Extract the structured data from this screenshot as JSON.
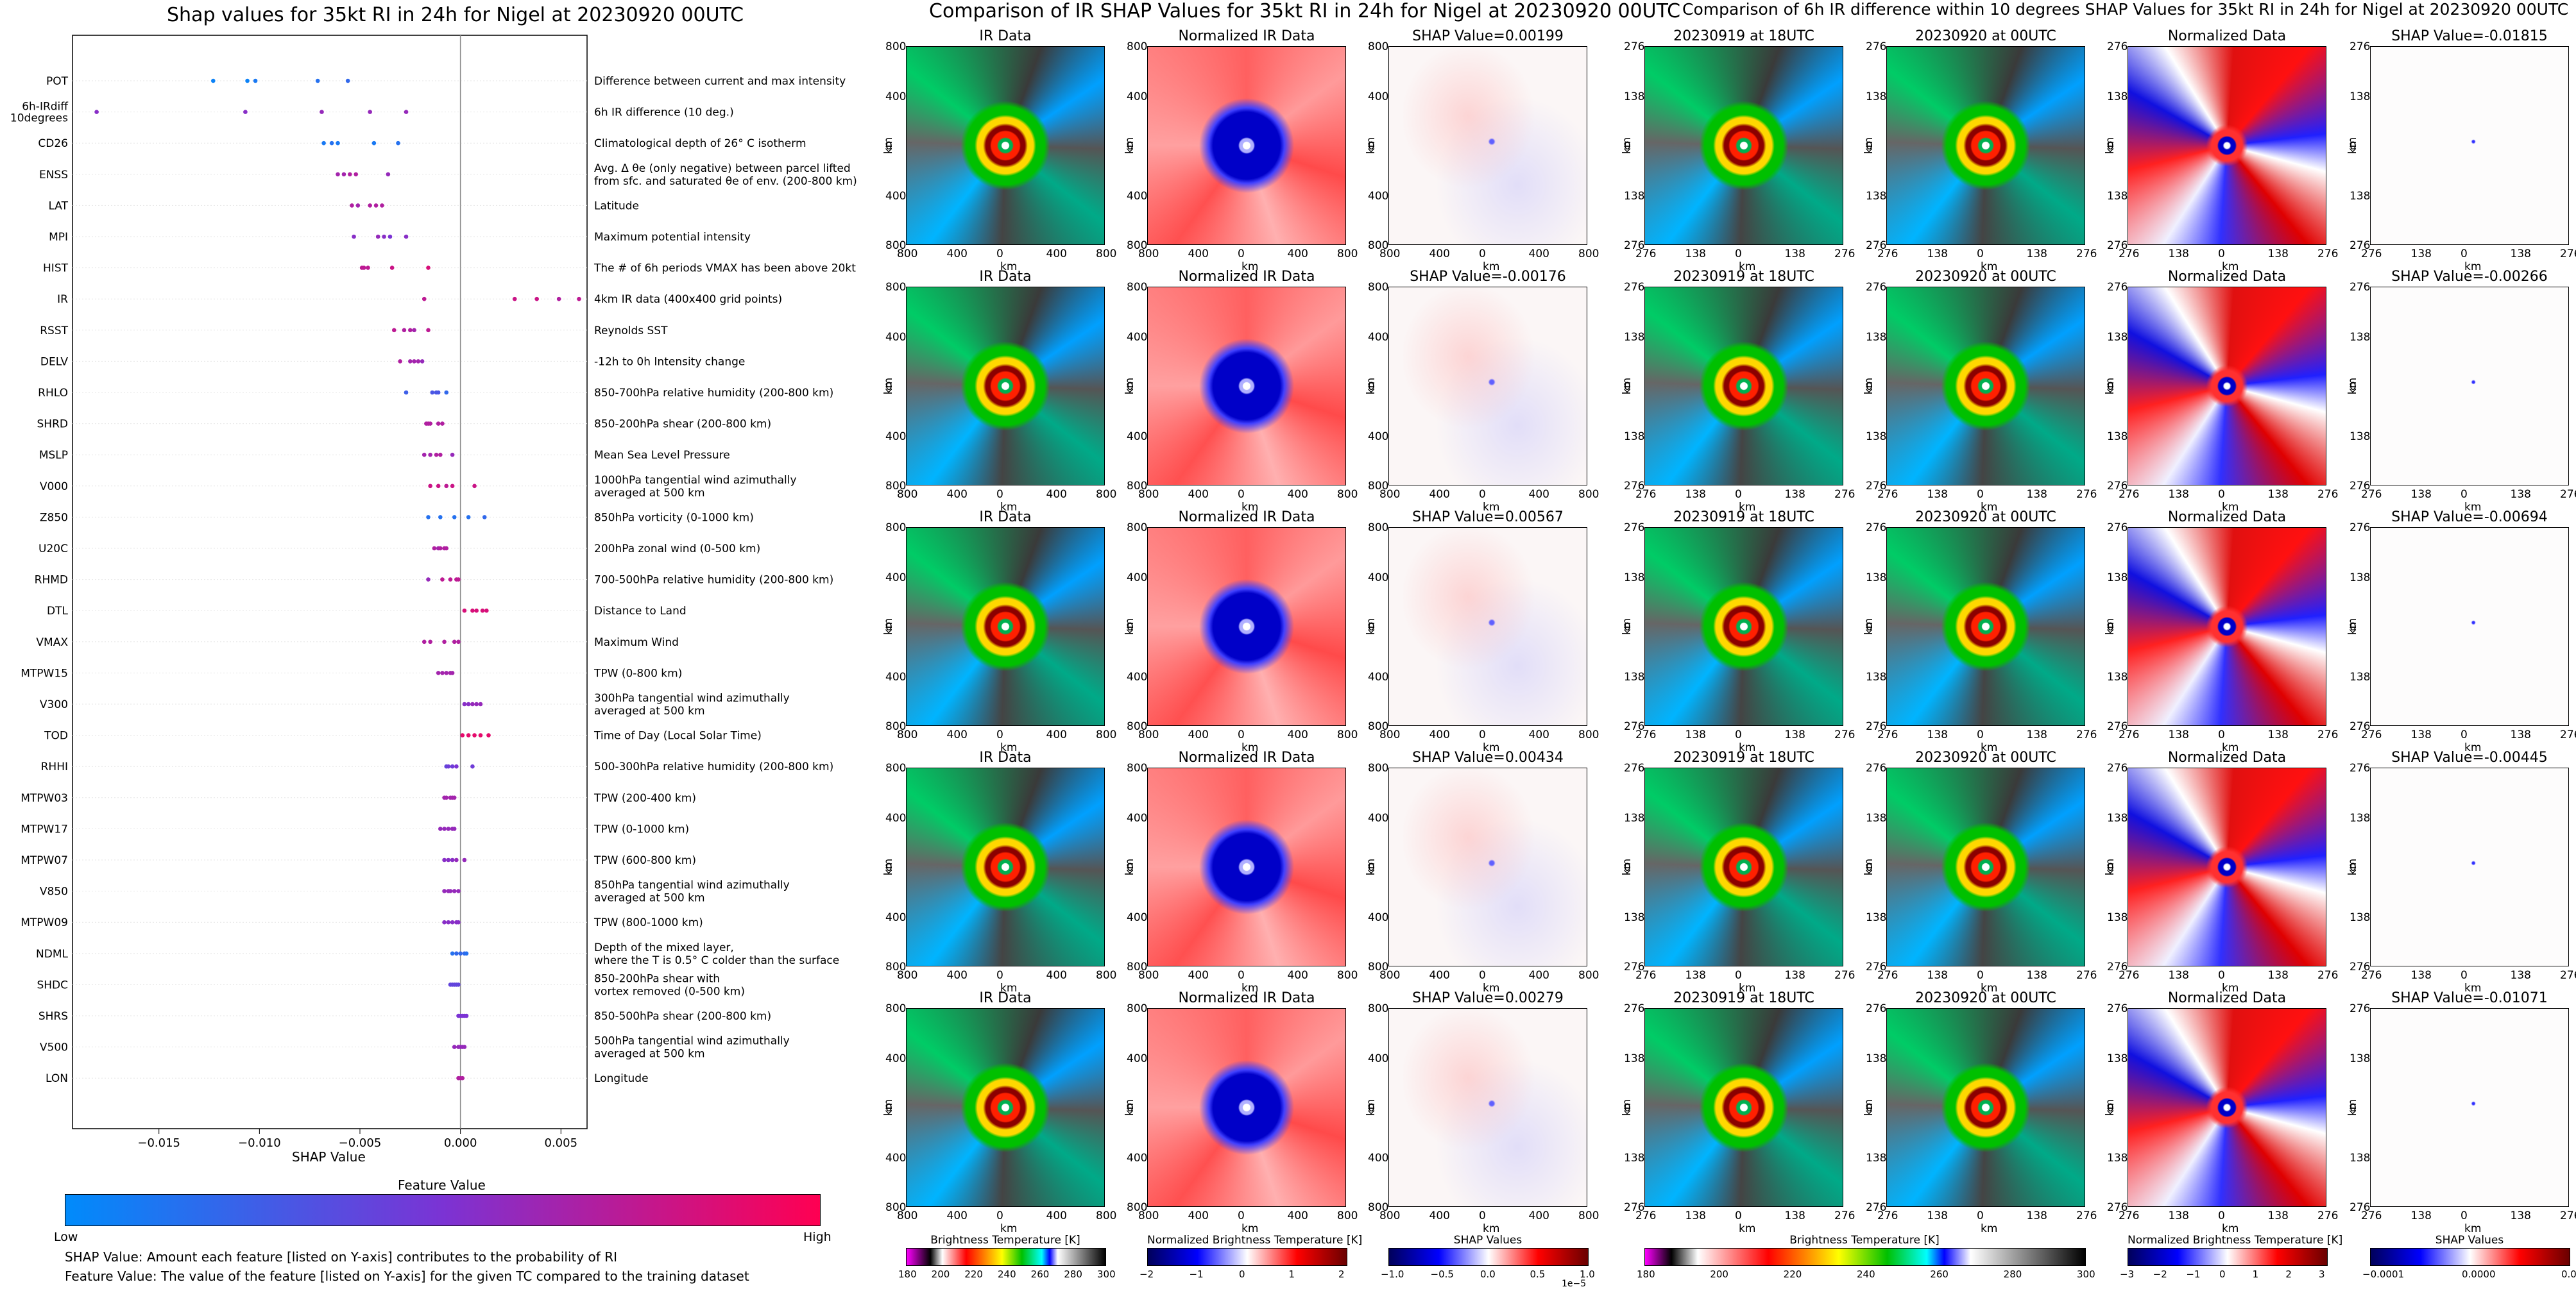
{
  "left_chart": {
    "title": "Shap values for 35kt RI in 24h for Nigel at 20230920 00UTC",
    "xlabel": "SHAP Value",
    "xticks": [
      "−0.015",
      "−0.010",
      "−0.005",
      "0.000",
      "0.005"
    ],
    "colorbar_title": "Feature Value",
    "colorbar_low": "Low",
    "colorbar_high": "High",
    "note1": "SHAP Value: Amount each feature [listed on Y-axis] contributes to the probability of RI",
    "note2": "Feature Value: The value of the feature [listed on Y-axis] for the given TC compared to the training dataset"
  },
  "middle_block": {
    "title": "Comparison of IR SHAP Values for 35kt RI in 24h for Nigel at 20230920 00UTC",
    "col_titles": [
      "IR Data",
      "Normalized IR Data"
    ],
    "shap_titles": [
      "SHAP Value=0.00199",
      "SHAP Value=-0.00176",
      "SHAP Value=0.00567",
      "SHAP Value=0.00434",
      "SHAP Value=0.00279"
    ],
    "axis_label": "km",
    "ticks_y": [
      "800",
      "400",
      "0",
      "400",
      "800"
    ],
    "ticks_x": [
      "800",
      "400",
      "0",
      "400",
      "800"
    ],
    "colorbars": [
      {
        "label": "Brightness Temperature [K]",
        "ticks": [
          "180",
          "200",
          "220",
          "240",
          "260",
          "280",
          "300"
        ]
      },
      {
        "label": "Normalized Brightness Temperature [K]",
        "ticks": [
          "−2",
          "−1",
          "0",
          "1",
          "2"
        ]
      },
      {
        "label": "SHAP Values",
        "ticks": [
          "−1.0",
          "−0.5",
          "0.0",
          "0.5",
          "1.0"
        ],
        "scale": "1e−5"
      }
    ]
  },
  "right_block": {
    "title": "Comparison of 6h IR difference within 10 degrees SHAP Values for 35kt RI in 24h for Nigel at 20230920 00UTC",
    "col_titles": [
      "20230919 at 18UTC",
      "20230920 at 00UTC",
      "Normalized Data"
    ],
    "shap_titles": [
      "SHAP Value=-0.01815",
      "SHAP Value=-0.00266",
      "SHAP Value=-0.00694",
      "SHAP Value=-0.00445",
      "SHAP Value=-0.01071"
    ],
    "axis_label": "km",
    "ticks_y": [
      "276",
      "138",
      "0",
      "138",
      "276"
    ],
    "ticks_x": [
      "276",
      "138",
      "0",
      "138",
      "276"
    ],
    "colorbars": [
      {
        "label": "Brightness Temperature [K]",
        "ticks": [
          "180",
          "200",
          "220",
          "240",
          "260",
          "280",
          "300"
        ]
      },
      {
        "label": "Normalized Brightness Temperature [K]",
        "ticks": [
          "−3",
          "−2",
          "−1",
          "0",
          "1",
          "2",
          "3"
        ]
      },
      {
        "label": "SHAP Values",
        "ticks": [
          "−0.0001",
          "0.0000",
          "0.0001"
        ]
      }
    ]
  },
  "colors": {
    "low": "#008bfb",
    "high": "#ff0052"
  },
  "chart_data": {
    "type": "scatter",
    "title": "Shap values for 35kt RI in 24h for Nigel at 20230920 00UTC",
    "xlabel": "SHAP Value",
    "xlim": [
      -0.0193,
      0.0063
    ],
    "features": [
      {
        "name": "POT",
        "desc": "Difference between current and max intensity",
        "points": [
          [
            -0.0123,
            0.05
          ],
          [
            -0.0106,
            0.05
          ],
          [
            -0.0102,
            0.1
          ],
          [
            -0.0071,
            0.15
          ],
          [
            -0.0056,
            0.2
          ]
        ]
      },
      {
        "name": "6h-IRdiff\n10degrees",
        "desc": "6h IR difference (10 deg.)",
        "points": [
          [
            -0.0181,
            0.55
          ],
          [
            -0.0107,
            0.55
          ],
          [
            -0.0069,
            0.6
          ],
          [
            -0.0045,
            0.6
          ],
          [
            -0.0027,
            0.6
          ]
        ]
      },
      {
        "name": "CD26",
        "desc": "Climatological depth of 26° C isotherm",
        "points": [
          [
            -0.0068,
            0.1
          ],
          [
            -0.0064,
            0.15
          ],
          [
            -0.0061,
            0.1
          ],
          [
            -0.0043,
            0.1
          ],
          [
            -0.0031,
            0.15
          ]
        ]
      },
      {
        "name": "ENSS",
        "desc": "Avg. Δ θe (only negative) between parcel lifted\nfrom sfc. and saturated θe of env. (200-800 km)",
        "points": [
          [
            -0.0061,
            0.65
          ],
          [
            -0.0058,
            0.65
          ],
          [
            -0.0055,
            0.7
          ],
          [
            -0.0052,
            0.7
          ],
          [
            -0.0036,
            0.6
          ]
        ]
      },
      {
        "name": "LAT",
        "desc": "Latitude",
        "points": [
          [
            -0.0054,
            0.7
          ],
          [
            -0.0051,
            0.65
          ],
          [
            -0.0045,
            0.7
          ],
          [
            -0.0042,
            0.7
          ],
          [
            -0.0039,
            0.7
          ]
        ]
      },
      {
        "name": "MPI",
        "desc": "Maximum potential intensity",
        "points": [
          [
            -0.0053,
            0.55
          ],
          [
            -0.0041,
            0.6
          ],
          [
            -0.0038,
            0.55
          ],
          [
            -0.0035,
            0.5
          ],
          [
            -0.0027,
            0.55
          ]
        ]
      },
      {
        "name": "HIST",
        "desc": "The # of 6h periods VMAX has been above 20kt",
        "points": [
          [
            -0.0049,
            0.75
          ],
          [
            -0.0048,
            0.75
          ],
          [
            -0.0046,
            0.75
          ],
          [
            -0.0034,
            0.8
          ],
          [
            -0.0016,
            0.85
          ]
        ]
      },
      {
        "name": "IR",
        "desc": "4km IR data (400x400 grid points)",
        "points": [
          [
            -0.0018,
            0.75
          ],
          [
            0.0027,
            0.8
          ],
          [
            0.0038,
            0.8
          ],
          [
            0.0049,
            0.7
          ],
          [
            0.0059,
            0.75
          ]
        ]
      },
      {
        "name": "RSST",
        "desc": "Reynolds SST",
        "points": [
          [
            -0.0033,
            0.75
          ],
          [
            -0.0028,
            0.7
          ],
          [
            -0.0025,
            0.7
          ],
          [
            -0.0023,
            0.65
          ],
          [
            -0.0016,
            0.75
          ]
        ]
      },
      {
        "name": "DELV",
        "desc": "-12h to 0h Intensity change",
        "points": [
          [
            -0.003,
            0.7
          ],
          [
            -0.0025,
            0.65
          ],
          [
            -0.0023,
            0.65
          ],
          [
            -0.0021,
            0.65
          ],
          [
            -0.0019,
            0.6
          ]
        ]
      },
      {
        "name": "RHLO",
        "desc": "850-700hPa relative humidity (200-800 km)",
        "points": [
          [
            -0.0027,
            0.25
          ],
          [
            -0.0014,
            0.3
          ],
          [
            -0.0012,
            0.3
          ],
          [
            -0.0011,
            0.3
          ],
          [
            -0.0007,
            0.2
          ]
        ]
      },
      {
        "name": "SHRD",
        "desc": "850-200hPa shear (200-800 km)",
        "points": [
          [
            -0.0017,
            0.7
          ],
          [
            -0.0016,
            0.7
          ],
          [
            -0.0015,
            0.7
          ],
          [
            -0.0011,
            0.7
          ],
          [
            -0.0009,
            0.7
          ]
        ]
      },
      {
        "name": "MSLP",
        "desc": "Mean Sea Level Pressure",
        "points": [
          [
            -0.0018,
            0.65
          ],
          [
            -0.0015,
            0.65
          ],
          [
            -0.0012,
            0.7
          ],
          [
            -0.001,
            0.7
          ],
          [
            -0.0004,
            0.6
          ]
        ]
      },
      {
        "name": "V000",
        "desc": "1000hPa tangential wind azimuthally\naveraged at 500 km",
        "points": [
          [
            -0.0015,
            0.8
          ],
          [
            -0.0011,
            0.8
          ],
          [
            -0.0007,
            0.75
          ],
          [
            -0.0004,
            0.8
          ],
          [
            0.0007,
            0.8
          ]
        ]
      },
      {
        "name": "Z850",
        "desc": "850hPa vorticity (0-1000 km)",
        "points": [
          [
            -0.0016,
            0.15
          ],
          [
            -0.001,
            0.15
          ],
          [
            -0.0003,
            0.15
          ],
          [
            0.0004,
            0.15
          ],
          [
            0.0012,
            0.2
          ]
        ]
      },
      {
        "name": "U20C",
        "desc": "200hPa zonal wind (0-500 km)",
        "points": [
          [
            -0.0013,
            0.7
          ],
          [
            -0.0011,
            0.65
          ],
          [
            -0.001,
            0.7
          ],
          [
            -0.0008,
            0.7
          ],
          [
            -0.0007,
            0.7
          ]
        ]
      },
      {
        "name": "RHMD",
        "desc": "700-500hPa relative humidity (200-800 km)",
        "points": [
          [
            -0.0016,
            0.6
          ],
          [
            -0.0009,
            0.75
          ],
          [
            -0.0005,
            0.75
          ],
          [
            -0.0002,
            0.75
          ],
          [
            -0.0001,
            0.75
          ]
        ]
      },
      {
        "name": "DTL",
        "desc": "Distance to Land",
        "points": [
          [
            0.0002,
            0.85
          ],
          [
            0.0006,
            0.85
          ],
          [
            0.0008,
            0.85
          ],
          [
            0.0011,
            0.85
          ],
          [
            0.0013,
            0.85
          ]
        ]
      },
      {
        "name": "VMAX",
        "desc": "Maximum Wind",
        "points": [
          [
            -0.0018,
            0.7
          ],
          [
            -0.0015,
            0.7
          ],
          [
            -0.0008,
            0.7
          ],
          [
            -0.0003,
            0.7
          ],
          [
            -0.0001,
            0.7
          ]
        ]
      },
      {
        "name": "MTPW15",
        "desc": "TPW (0-800 km)",
        "points": [
          [
            -0.0011,
            0.65
          ],
          [
            -0.0009,
            0.65
          ],
          [
            -0.0007,
            0.65
          ],
          [
            -0.0005,
            0.65
          ],
          [
            -0.0004,
            0.65
          ]
        ]
      },
      {
        "name": "V300",
        "desc": "300hPa tangential wind azimuthally\naveraged at 500 km",
        "points": [
          [
            0.0002,
            0.55
          ],
          [
            0.0004,
            0.55
          ],
          [
            0.0006,
            0.6
          ],
          [
            0.0008,
            0.6
          ],
          [
            0.001,
            0.6
          ]
        ]
      },
      {
        "name": "TOD",
        "desc": "Time of Day (Local Solar Time)",
        "points": [
          [
            0.0001,
            0.9
          ],
          [
            0.0004,
            0.9
          ],
          [
            0.0007,
            0.9
          ],
          [
            0.001,
            0.9
          ],
          [
            0.0014,
            0.9
          ]
        ]
      },
      {
        "name": "RHHI",
        "desc": "500-300hPa relative humidity (200-800 km)",
        "points": [
          [
            -0.0007,
            0.4
          ],
          [
            -0.0006,
            0.45
          ],
          [
            -0.0004,
            0.45
          ],
          [
            -0.0002,
            0.5
          ],
          [
            0.0006,
            0.45
          ]
        ]
      },
      {
        "name": "MTPW03",
        "desc": "TPW (200-400 km)",
        "points": [
          [
            -0.0008,
            0.65
          ],
          [
            -0.0007,
            0.65
          ],
          [
            -0.0005,
            0.65
          ],
          [
            -0.0004,
            0.65
          ],
          [
            -0.0003,
            0.65
          ]
        ]
      },
      {
        "name": "MTPW17",
        "desc": "TPW (0-1000 km)",
        "points": [
          [
            -0.001,
            0.6
          ],
          [
            -0.0008,
            0.6
          ],
          [
            -0.0006,
            0.6
          ],
          [
            -0.0004,
            0.6
          ],
          [
            -0.0003,
            0.6
          ]
        ]
      },
      {
        "name": "MTPW07",
        "desc": "TPW (600-800 km)",
        "points": [
          [
            -0.0008,
            0.55
          ],
          [
            -0.0006,
            0.55
          ],
          [
            -0.0004,
            0.55
          ],
          [
            -0.0002,
            0.6
          ],
          [
            0.0002,
            0.6
          ]
        ]
      },
      {
        "name": "V850",
        "desc": "850hPa tangential wind azimuthally\naveraged at 500 km",
        "points": [
          [
            -0.0008,
            0.6
          ],
          [
            -0.0006,
            0.6
          ],
          [
            -0.0005,
            0.6
          ],
          [
            -0.0003,
            0.6
          ],
          [
            -0.0001,
            0.6
          ]
        ]
      },
      {
        "name": "MTPW09",
        "desc": "TPW (800-1000 km)",
        "points": [
          [
            -0.0008,
            0.55
          ],
          [
            -0.0006,
            0.55
          ],
          [
            -0.0004,
            0.55
          ],
          [
            -0.0002,
            0.55
          ],
          [
            -0.0001,
            0.55
          ]
        ]
      },
      {
        "name": "NDML",
        "desc": "Depth of the mixed layer,\nwhere the T is 0.5° C colder than the surface",
        "points": [
          [
            -0.0004,
            0.15
          ],
          [
            -0.0002,
            0.2
          ],
          [
            0.0,
            0.2
          ],
          [
            0.0002,
            0.2
          ],
          [
            0.0003,
            0.15
          ]
        ]
      },
      {
        "name": "SHDC",
        "desc": "850-200hPa shear with\nvortex removed (0-500 km)",
        "points": [
          [
            -0.0005,
            0.4
          ],
          [
            -0.0004,
            0.4
          ],
          [
            -0.0003,
            0.4
          ],
          [
            -0.0002,
            0.4
          ],
          [
            -0.0001,
            0.4
          ]
        ]
      },
      {
        "name": "SHRS",
        "desc": "850-500hPa shear (200-800 km)",
        "points": [
          [
            -0.0001,
            0.5
          ],
          [
            0.0,
            0.5
          ],
          [
            0.0001,
            0.5
          ],
          [
            0.0002,
            0.5
          ],
          [
            0.0003,
            0.5
          ]
        ]
      },
      {
        "name": "V500",
        "desc": "500hPa tangential wind azimuthally\naveraged at 500 km",
        "points": [
          [
            -0.0003,
            0.6
          ],
          [
            -0.0001,
            0.6
          ],
          [
            0.0,
            0.6
          ],
          [
            0.0001,
            0.6
          ],
          [
            0.0002,
            0.6
          ]
        ]
      },
      {
        "name": "LON",
        "desc": "Longitude",
        "points": [
          [
            -0.0001,
            0.7
          ],
          [
            0.0,
            0.7
          ],
          [
            0.0001,
            0.7
          ]
        ]
      }
    ]
  }
}
